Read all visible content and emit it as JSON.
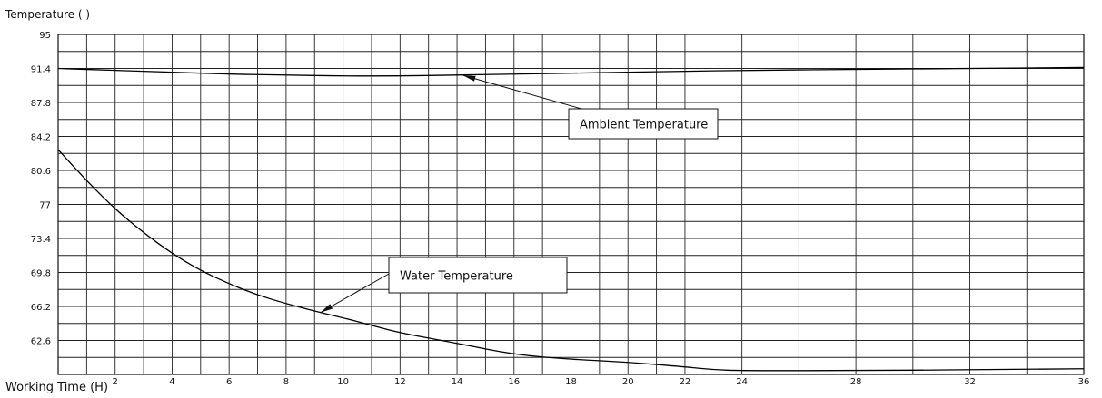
{
  "chart_data": {
    "type": "line",
    "ylabel": "Temperature ( )",
    "xlabel": "Working Time (H)",
    "xlim": [
      0,
      36
    ],
    "ylim": [
      59,
      95
    ],
    "grid": true,
    "x_ticks": [
      2,
      4,
      6,
      8,
      10,
      12,
      14,
      16,
      18,
      20,
      22,
      24,
      28,
      32,
      36
    ],
    "y_ticks": [
      95,
      91.4,
      87.8,
      84.2,
      80.6,
      77,
      73.4,
      69.8,
      66.2,
      62.6
    ],
    "series": [
      {
        "name": "Ambient Temperature",
        "x": [
          0,
          2,
          4,
          6,
          8,
          10,
          12,
          14,
          16,
          18,
          20,
          22,
          24,
          28,
          32,
          36
        ],
        "y": [
          91.4,
          91.2,
          91.0,
          90.8,
          90.7,
          90.6,
          90.6,
          90.7,
          90.8,
          90.9,
          91.0,
          91.1,
          91.2,
          91.3,
          91.4,
          91.5
        ]
      },
      {
        "name": "Water Temperature",
        "x": [
          0,
          1,
          2,
          3,
          4,
          5,
          6,
          7,
          8,
          9,
          10,
          11,
          12,
          14,
          16,
          18,
          20,
          22,
          23,
          24,
          28,
          32,
          36
        ],
        "y": [
          82.8,
          79.5,
          76.5,
          74.0,
          71.8,
          70.0,
          68.6,
          67.4,
          66.5,
          65.7,
          65.0,
          64.2,
          63.4,
          62.3,
          61.1,
          60.6,
          60.3,
          59.8,
          59.5,
          59.4,
          59.4,
          59.5,
          59.6
        ]
      }
    ],
    "annotations": [
      {
        "text": "Ambient Temperature",
        "series": 0
      },
      {
        "text": "Water Temperature",
        "series": 1
      }
    ]
  }
}
